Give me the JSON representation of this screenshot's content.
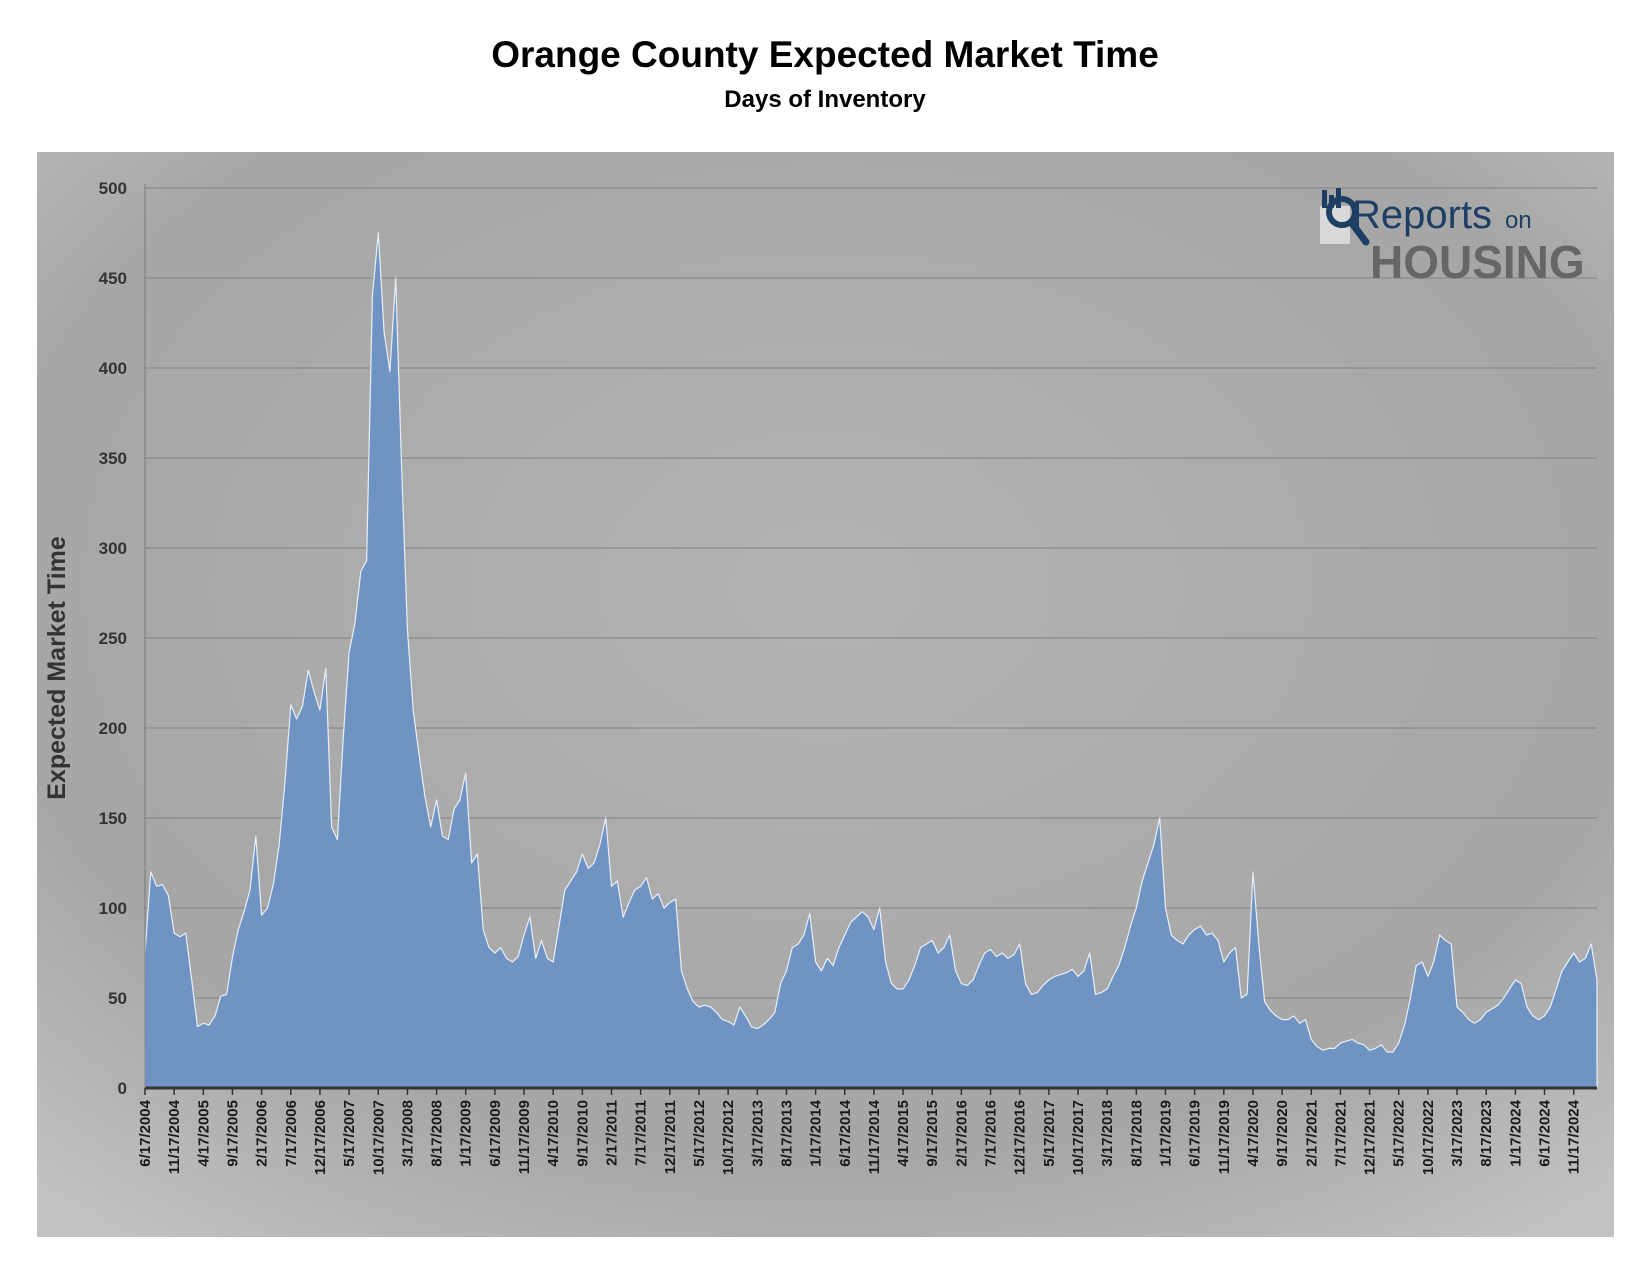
{
  "chart_data": {
    "type": "area",
    "title": "Orange County Expected Market Time",
    "subtitle": "Days of Inventory",
    "ylabel": "Expected Market Time",
    "xlabel": "",
    "ylim": [
      0,
      500
    ],
    "yticks": [
      0,
      50,
      100,
      150,
      200,
      250,
      300,
      350,
      400,
      450,
      500
    ],
    "grid": true,
    "x_range": [
      "6/17/2004",
      "3/17/2025"
    ],
    "xtick_labels": [
      "6/17/2004",
      "11/17/2004",
      "4/17/2005",
      "9/17/2005",
      "2/17/2006",
      "7/17/2006",
      "12/17/2006",
      "5/17/2007",
      "10/17/2007",
      "3/17/2008",
      "8/17/2008",
      "1/17/2009",
      "6/17/2009",
      "11/17/2009",
      "4/17/2010",
      "9/17/2010",
      "2/17/2011",
      "7/17/2011",
      "12/17/2011",
      "5/17/2012",
      "10/17/2012",
      "3/17/2013",
      "8/17/2013",
      "1/17/2014",
      "6/17/2014",
      "11/17/2014",
      "4/17/2015",
      "9/17/2015",
      "2/17/2016",
      "7/17/2016",
      "12/17/2016",
      "5/17/2017",
      "10/17/2017",
      "3/17/2018",
      "8/17/2018",
      "1/17/2019",
      "6/17/2019",
      "11/17/2019",
      "4/17/2020",
      "9/17/2020",
      "2/17/2021",
      "7/17/2021",
      "12/17/2021",
      "5/17/2022",
      "10/17/2022",
      "3/17/2023",
      "8/17/2023",
      "1/17/2024",
      "6/17/2024",
      "11/17/2024"
    ],
    "series": [
      {
        "points": [
          [
            "6/17/2004",
            75
          ],
          [
            "7/17/2004",
            120
          ],
          [
            "8/17/2004",
            112
          ],
          [
            "9/17/2004",
            113
          ],
          [
            "10/17/2004",
            107
          ],
          [
            "11/17/2004",
            86
          ],
          [
            "12/17/2004",
            84
          ],
          [
            "1/17/2005",
            86
          ],
          [
            "2/17/2005",
            60
          ],
          [
            "3/17/2005",
            34
          ],
          [
            "4/17/2005",
            36
          ],
          [
            "5/17/2005",
            35
          ],
          [
            "6/17/2005",
            40
          ],
          [
            "7/17/2005",
            51
          ],
          [
            "8/17/2005",
            52
          ],
          [
            "9/17/2005",
            73
          ],
          [
            "10/17/2005",
            88
          ],
          [
            "11/17/2005",
            98
          ],
          [
            "12/17/2005",
            110
          ],
          [
            "1/17/2006",
            140
          ],
          [
            "2/17/2006",
            96
          ],
          [
            "3/17/2006",
            100
          ],
          [
            "4/17/2006",
            113
          ],
          [
            "5/17/2006",
            135
          ],
          [
            "6/17/2006",
            170
          ],
          [
            "7/17/2006",
            213
          ],
          [
            "8/17/2006",
            205
          ],
          [
            "9/17/2006",
            212
          ],
          [
            "10/17/2006",
            232
          ],
          [
            "11/17/2006",
            220
          ],
          [
            "12/17/2006",
            210
          ],
          [
            "1/17/2007",
            233
          ],
          [
            "2/17/2007",
            145
          ],
          [
            "3/17/2007",
            138
          ],
          [
            "4/17/2007",
            195
          ],
          [
            "5/17/2007",
            242
          ],
          [
            "6/17/2007",
            258
          ],
          [
            "7/17/2007",
            287
          ],
          [
            "8/17/2007",
            293
          ],
          [
            "9/17/2007",
            440
          ],
          [
            "10/17/2007",
            475
          ],
          [
            "11/17/2007",
            420
          ],
          [
            "12/17/2007",
            398
          ],
          [
            "1/17/2008",
            450
          ],
          [
            "2/17/2008",
            345
          ],
          [
            "3/17/2008",
            255
          ],
          [
            "4/17/2008",
            210
          ],
          [
            "5/17/2008",
            185
          ],
          [
            "6/17/2008",
            162
          ],
          [
            "7/17/2008",
            145
          ],
          [
            "8/17/2008",
            160
          ],
          [
            "9/17/2008",
            140
          ],
          [
            "10/17/2008",
            138
          ],
          [
            "11/17/2008",
            155
          ],
          [
            "12/17/2008",
            160
          ],
          [
            "1/17/2009",
            175
          ],
          [
            "2/17/2009",
            125
          ],
          [
            "3/17/2009",
            130
          ],
          [
            "4/17/2009",
            88
          ],
          [
            "5/17/2009",
            78
          ],
          [
            "6/17/2009",
            75
          ],
          [
            "7/17/2009",
            78
          ],
          [
            "8/17/2009",
            72
          ],
          [
            "9/17/2009",
            70
          ],
          [
            "10/17/2009",
            73
          ],
          [
            "11/17/2009",
            85
          ],
          [
            "12/17/2009",
            95
          ],
          [
            "1/17/2010",
            72
          ],
          [
            "2/17/2010",
            82
          ],
          [
            "3/17/2010",
            72
          ],
          [
            "4/17/2010",
            70
          ],
          [
            "5/17/2010",
            90
          ],
          [
            "6/17/2010",
            110
          ],
          [
            "7/17/2010",
            115
          ],
          [
            "8/17/2010",
            120
          ],
          [
            "9/17/2010",
            130
          ],
          [
            "10/17/2010",
            122
          ],
          [
            "11/17/2010",
            125
          ],
          [
            "12/17/2010",
            135
          ],
          [
            "1/17/2011",
            150
          ],
          [
            "2/17/2011",
            112
          ],
          [
            "3/17/2011",
            115
          ],
          [
            "4/17/2011",
            95
          ],
          [
            "5/17/2011",
            103
          ],
          [
            "6/17/2011",
            110
          ],
          [
            "7/17/2011",
            112
          ],
          [
            "8/17/2011",
            117
          ],
          [
            "9/17/2011",
            105
          ],
          [
            "10/17/2011",
            108
          ],
          [
            "11/17/2011",
            100
          ],
          [
            "12/17/2011",
            103
          ],
          [
            "1/17/2012",
            105
          ],
          [
            "2/17/2012",
            65
          ],
          [
            "3/17/2012",
            55
          ],
          [
            "4/17/2012",
            48
          ],
          [
            "5/17/2012",
            45
          ],
          [
            "6/17/2012",
            46
          ],
          [
            "7/17/2012",
            45
          ],
          [
            "8/17/2012",
            42
          ],
          [
            "9/17/2012",
            38
          ],
          [
            "10/17/2012",
            37
          ],
          [
            "11/17/2012",
            35
          ],
          [
            "12/17/2012",
            45
          ],
          [
            "1/17/2013",
            40
          ],
          [
            "2/17/2013",
            34
          ],
          [
            "3/17/2013",
            33
          ],
          [
            "4/17/2013",
            35
          ],
          [
            "5/17/2013",
            38
          ],
          [
            "6/17/2013",
            42
          ],
          [
            "7/17/2013",
            58
          ],
          [
            "8/17/2013",
            65
          ],
          [
            "9/17/2013",
            78
          ],
          [
            "10/17/2013",
            80
          ],
          [
            "11/17/2013",
            85
          ],
          [
            "12/17/2013",
            97
          ],
          [
            "1/17/2014",
            70
          ],
          [
            "2/17/2014",
            65
          ],
          [
            "3/17/2014",
            72
          ],
          [
            "4/17/2014",
            68
          ],
          [
            "5/17/2014",
            78
          ],
          [
            "6/17/2014",
            85
          ],
          [
            "7/17/2014",
            92
          ],
          [
            "8/17/2014",
            95
          ],
          [
            "9/17/2014",
            98
          ],
          [
            "10/17/2014",
            95
          ],
          [
            "11/17/2014",
            88
          ],
          [
            "12/17/2014",
            100
          ],
          [
            "1/17/2015",
            70
          ],
          [
            "2/17/2015",
            58
          ],
          [
            "3/17/2015",
            55
          ],
          [
            "4/17/2015",
            55
          ],
          [
            "5/17/2015",
            60
          ],
          [
            "6/17/2015",
            68
          ],
          [
            "7/17/2015",
            78
          ],
          [
            "8/17/2015",
            80
          ],
          [
            "9/17/2015",
            82
          ],
          [
            "10/17/2015",
            75
          ],
          [
            "11/17/2015",
            78
          ],
          [
            "12/17/2015",
            85
          ],
          [
            "1/17/2016",
            65
          ],
          [
            "2/17/2016",
            58
          ],
          [
            "3/17/2016",
            57
          ],
          [
            "4/17/2016",
            60
          ],
          [
            "5/17/2016",
            68
          ],
          [
            "6/17/2016",
            75
          ],
          [
            "7/17/2016",
            77
          ],
          [
            "8/17/2016",
            73
          ],
          [
            "9/17/2016",
            75
          ],
          [
            "10/17/2016",
            72
          ],
          [
            "11/17/2016",
            74
          ],
          [
            "12/17/2016",
            80
          ],
          [
            "1/17/2017",
            58
          ],
          [
            "2/17/2017",
            52
          ],
          [
            "3/17/2017",
            53
          ],
          [
            "4/17/2017",
            57
          ],
          [
            "5/17/2017",
            60
          ],
          [
            "6/17/2017",
            62
          ],
          [
            "7/17/2017",
            63
          ],
          [
            "8/17/2017",
            64
          ],
          [
            "9/17/2017",
            66
          ],
          [
            "10/17/2017",
            62
          ],
          [
            "11/17/2017",
            65
          ],
          [
            "12/17/2017",
            75
          ],
          [
            "1/17/2018",
            52
          ],
          [
            "2/17/2018",
            53
          ],
          [
            "3/17/2018",
            55
          ],
          [
            "4/17/2018",
            62
          ],
          [
            "5/17/2018",
            68
          ],
          [
            "6/17/2018",
            78
          ],
          [
            "7/17/2018",
            90
          ],
          [
            "8/17/2018",
            100
          ],
          [
            "9/17/2018",
            115
          ],
          [
            "10/17/2018",
            125
          ],
          [
            "11/17/2018",
            135
          ],
          [
            "12/17/2018",
            150
          ],
          [
            "1/17/2019",
            100
          ],
          [
            "2/17/2019",
            85
          ],
          [
            "3/17/2019",
            82
          ],
          [
            "4/17/2019",
            80
          ],
          [
            "5/17/2019",
            85
          ],
          [
            "6/17/2019",
            88
          ],
          [
            "7/17/2019",
            90
          ],
          [
            "8/17/2019",
            85
          ],
          [
            "9/17/2019",
            86
          ],
          [
            "10/17/2019",
            82
          ],
          [
            "11/17/2019",
            70
          ],
          [
            "12/17/2019",
            75
          ],
          [
            "1/17/2020",
            78
          ],
          [
            "2/17/2020",
            50
          ],
          [
            "3/17/2020",
            52
          ],
          [
            "4/17/2020",
            120
          ],
          [
            "5/17/2020",
            80
          ],
          [
            "6/17/2020",
            48
          ],
          [
            "7/17/2020",
            43
          ],
          [
            "8/17/2020",
            40
          ],
          [
            "9/17/2020",
            38
          ],
          [
            "10/17/2020",
            38
          ],
          [
            "11/17/2020",
            40
          ],
          [
            "12/17/2020",
            36
          ],
          [
            "1/17/2021",
            38
          ],
          [
            "2/17/2021",
            27
          ],
          [
            "3/17/2021",
            23
          ],
          [
            "4/17/2021",
            21
          ],
          [
            "5/17/2021",
            22
          ],
          [
            "6/17/2021",
            22
          ],
          [
            "7/17/2021",
            25
          ],
          [
            "8/17/2021",
            26
          ],
          [
            "9/17/2021",
            27
          ],
          [
            "10/17/2021",
            25
          ],
          [
            "11/17/2021",
            24
          ],
          [
            "12/17/2021",
            21
          ],
          [
            "1/17/2022",
            22
          ],
          [
            "2/17/2022",
            24
          ],
          [
            "3/17/2022",
            20
          ],
          [
            "4/17/2022",
            20
          ],
          [
            "5/17/2022",
            25
          ],
          [
            "6/17/2022",
            35
          ],
          [
            "7/17/2022",
            50
          ],
          [
            "8/17/2022",
            68
          ],
          [
            "9/17/2022",
            70
          ],
          [
            "10/17/2022",
            62
          ],
          [
            "11/17/2022",
            70
          ],
          [
            "12/17/2022",
            85
          ],
          [
            "1/17/2023",
            82
          ],
          [
            "2/17/2023",
            80
          ],
          [
            "3/17/2023",
            45
          ],
          [
            "4/17/2023",
            42
          ],
          [
            "5/17/2023",
            38
          ],
          [
            "6/17/2023",
            36
          ],
          [
            "7/17/2023",
            38
          ],
          [
            "8/17/2023",
            42
          ],
          [
            "9/17/2023",
            44
          ],
          [
            "10/17/2023",
            46
          ],
          [
            "11/17/2023",
            50
          ],
          [
            "12/17/2023",
            55
          ],
          [
            "1/17/2024",
            60
          ],
          [
            "2/17/2024",
            58
          ],
          [
            "3/17/2024",
            45
          ],
          [
            "4/17/2024",
            40
          ],
          [
            "5/17/2024",
            38
          ],
          [
            "6/17/2024",
            40
          ],
          [
            "7/17/2024",
            45
          ],
          [
            "8/17/2024",
            55
          ],
          [
            "9/17/2024",
            65
          ],
          [
            "10/17/2024",
            70
          ],
          [
            "11/17/2024",
            75
          ],
          [
            "12/17/2024",
            70
          ],
          [
            "1/17/2025",
            72
          ],
          [
            "2/17/2025",
            80
          ],
          [
            "3/17/2025",
            60
          ]
        ]
      }
    ],
    "colors": {
      "area_fill": "#6f94c4",
      "area_edge": "#e8eef6",
      "plot_bg_center": "#b0b0b0",
      "plot_bg_edge": "#9c9c9c",
      "axis": "#333333",
      "grid": "#8a8a8a"
    }
  },
  "logo": {
    "top_text": "Reports",
    "on_text": "on",
    "bottom_text": "HOUSING",
    "icon": "magnifier-chart-icon",
    "color_primary": "#1e3f63",
    "color_secondary": "#666666"
  }
}
